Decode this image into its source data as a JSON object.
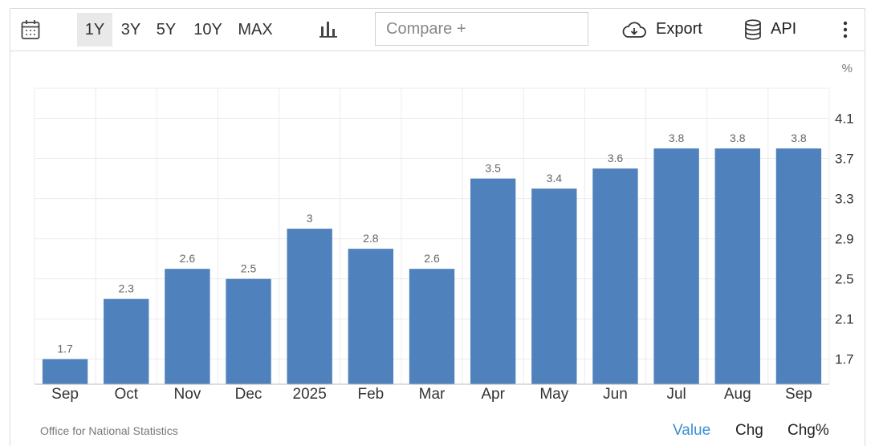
{
  "toolbar": {
    "calendar_icon": "calendar-icon",
    "ranges": [
      {
        "label": "1Y",
        "active": true
      },
      {
        "label": "3Y",
        "active": false
      },
      {
        "label": "5Y",
        "active": false
      },
      {
        "label": "10Y",
        "active": false
      },
      {
        "label": "MAX",
        "active": false
      }
    ],
    "chart_type_icon": "bar-chart-icon",
    "compare_placeholder": "Compare +",
    "export_icon": "cloud-download-icon",
    "export_label": "Export",
    "api_icon": "database-icon",
    "api_label": "API",
    "more_icon": "vertical-dots-icon"
  },
  "chart_data": {
    "type": "bar",
    "unit_label": "%",
    "categories": [
      "Sep",
      "Oct",
      "Nov",
      "Dec",
      "2025",
      "Feb",
      "Mar",
      "Apr",
      "May",
      "Jun",
      "Jul",
      "Aug",
      "Sep"
    ],
    "values": [
      1.7,
      2.3,
      2.6,
      2.5,
      3,
      2.8,
      2.6,
      3.5,
      3.4,
      3.6,
      3.8,
      3.8,
      3.8
    ],
    "yticks": [
      1.7,
      2.1,
      2.5,
      2.9,
      3.3,
      3.7,
      4.1
    ],
    "ylim": [
      1.45,
      4.4
    ],
    "y_axis_position": "right",
    "grid": true,
    "bar_color": "#4f81bd"
  },
  "footer": {
    "source": "Office for National Statistics",
    "modes": [
      {
        "label": "Value",
        "active": true
      },
      {
        "label": "Chg",
        "active": false
      },
      {
        "label": "Chg%",
        "active": false
      }
    ],
    "active_color": "#3a8fd6"
  }
}
